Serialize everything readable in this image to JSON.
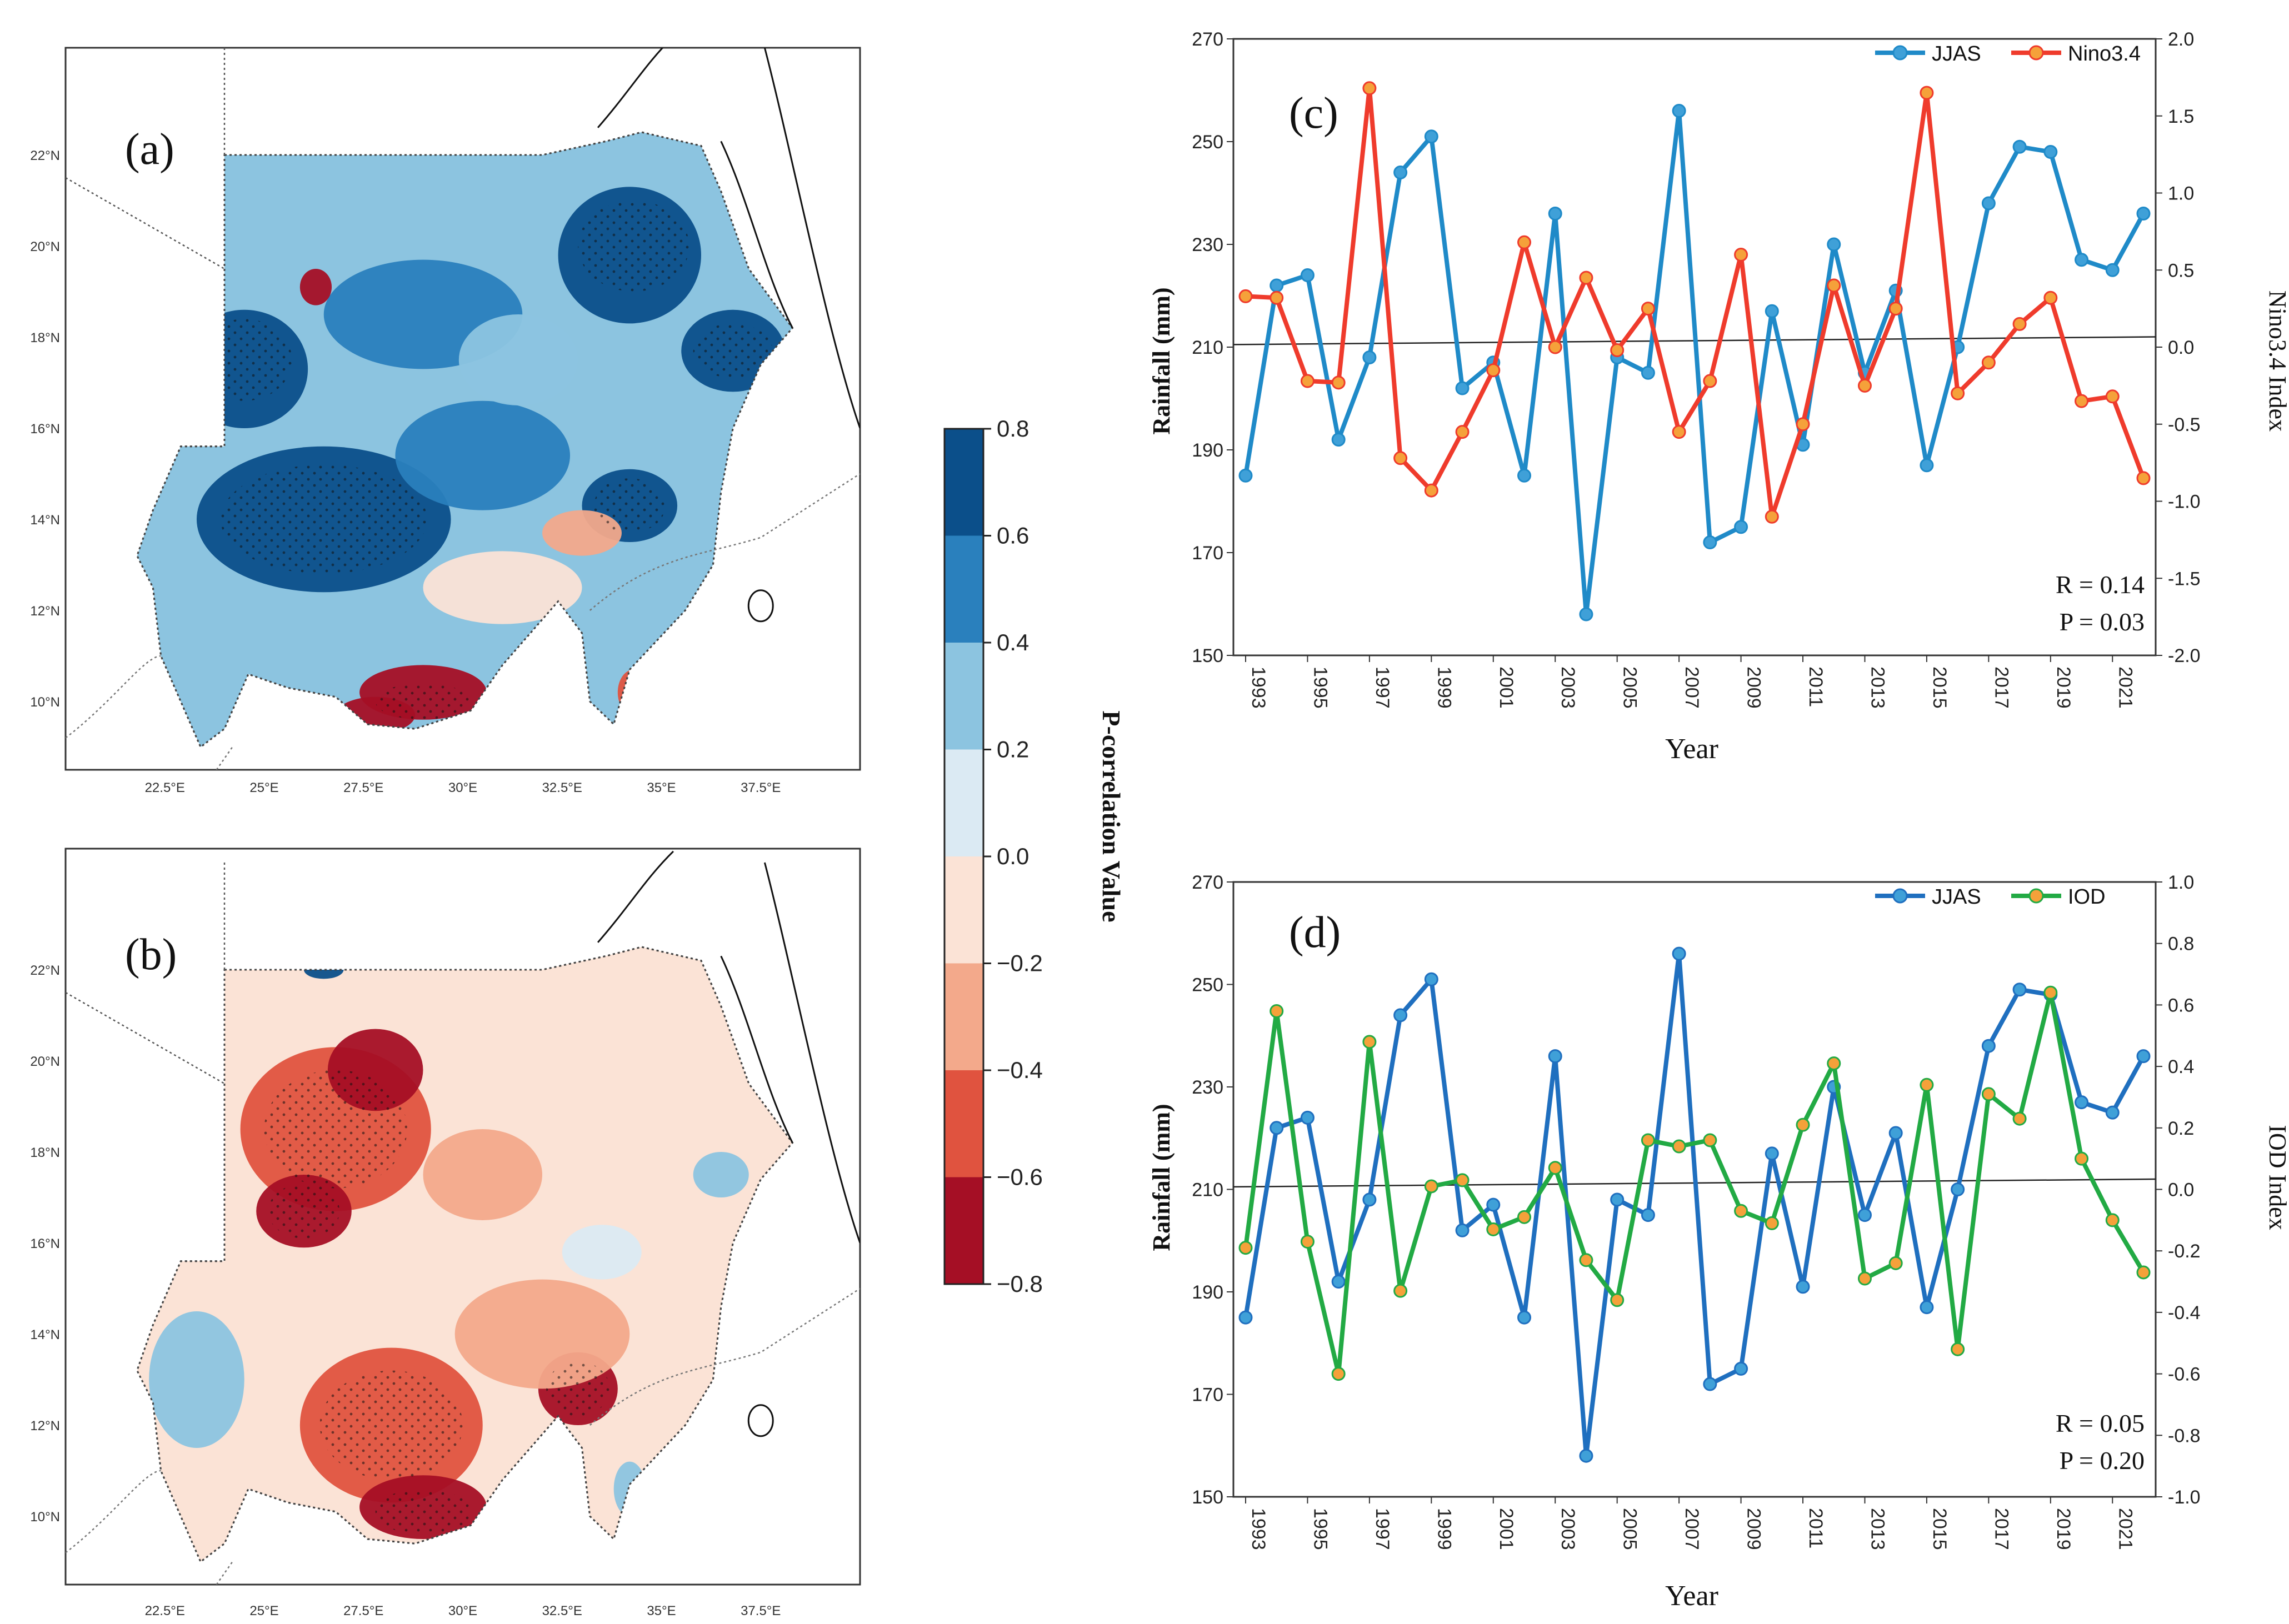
{
  "maps": [
    {
      "panel_label": "(a)",
      "lat_ticks": [
        "10°N",
        "12°N",
        "14°N",
        "16°N",
        "18°N",
        "20°N",
        "22°N"
      ],
      "lon_ticks": [
        "22.5°E",
        "25°E",
        "27.5°E",
        "30°E",
        "32.5°E",
        "35°E",
        "37.5°E"
      ],
      "palette": {
        "strong_pos": "#0b4f8a",
        "pos": "#2a80bd",
        "weak_pos": "#8cc4e0",
        "neutral_pos": "#dbeaf3",
        "neutral_neg": "#fbe3d6",
        "weak_neg": "#f3a98b",
        "neg": "#e0533f",
        "strong_neg": "#a50f25"
      }
    },
    {
      "panel_label": "(b)",
      "lat_ticks": [
        "10°N",
        "12°N",
        "14°N",
        "16°N",
        "18°N",
        "20°N",
        "22°N"
      ],
      "lon_ticks": [
        "22.5°E",
        "25°E",
        "27.5°E",
        "30°E",
        "32.5°E",
        "35°E",
        "37.5°E"
      ]
    }
  ],
  "colorbar": {
    "label": "P-correlation Value",
    "ticks": [
      "0.8",
      "0.6",
      "0.4",
      "0.2",
      "0.0",
      "−0.2",
      "−0.4",
      "−0.6",
      "−0.8"
    ],
    "colors": [
      "#0b4f8a",
      "#2a80bd",
      "#8cc4e0",
      "#dbeaf3",
      "#fbe3d6",
      "#f3a98b",
      "#e0533f",
      "#a50f25"
    ]
  },
  "chart_data": [
    {
      "type": "line",
      "panel_label": "(c)",
      "x": [
        1993,
        1994,
        1995,
        1996,
        1997,
        1998,
        1999,
        2000,
        2001,
        2002,
        2003,
        2004,
        2005,
        2006,
        2007,
        2008,
        2009,
        2010,
        2011,
        2012,
        2013,
        2014,
        2015,
        2016,
        2017,
        2018,
        2019,
        2020,
        2021,
        2022
      ],
      "x_tick_labels": [
        "1993",
        "1995",
        "1997",
        "1999",
        "2001",
        "2003",
        "2005",
        "2007",
        "2009",
        "2011",
        "2013",
        "2015",
        "2017",
        "2019",
        "2021"
      ],
      "xlabel": "Year",
      "ylabel": "Rainfall (mm)",
      "ylim": [
        150,
        270
      ],
      "y_ticks": [
        "150",
        "170",
        "190",
        "210",
        "230",
        "250",
        "270"
      ],
      "y2label": "Nino3.4 Index",
      "y2lim": [
        -2.0,
        2.0
      ],
      "y2_ticks": [
        "-2.0",
        "-1.5",
        "-1.0",
        "-0.5",
        "0.0",
        "0.5",
        "1.0",
        "1.5",
        "2.0"
      ],
      "reference_line": {
        "from": 210.5,
        "to": 212
      },
      "series": [
        {
          "name": "JJAS",
          "axis": "left",
          "color": "#1f8ac8",
          "marker": "#3fa0d8",
          "values": [
            185,
            222,
            224,
            192,
            208,
            244,
            251,
            202,
            207,
            185,
            236,
            158,
            208,
            205,
            256,
            172,
            175,
            217,
            191,
            230,
            205,
            221,
            187,
            210,
            238,
            249,
            248,
            227,
            225,
            236
          ]
        },
        {
          "name": "Nino3.4",
          "axis": "right",
          "color": "#ef3b2c",
          "marker": "#f5a13a",
          "values": [
            0.33,
            0.32,
            -0.22,
            -0.23,
            1.68,
            -0.72,
            -0.93,
            -0.55,
            -0.15,
            0.68,
            0.0,
            0.45,
            -0.02,
            0.25,
            -0.55,
            -0.22,
            0.6,
            -1.1,
            -0.5,
            0.4,
            -0.25,
            0.25,
            1.65,
            -0.3,
            -0.1,
            0.15,
            0.32,
            -0.35,
            -0.32,
            -0.85
          ]
        }
      ],
      "stats": {
        "r": "R = 0.14",
        "p": "P = 0.03"
      },
      "legend_position": "top-right"
    },
    {
      "type": "line",
      "panel_label": "(d)",
      "x": [
        1993,
        1994,
        1995,
        1996,
        1997,
        1998,
        1999,
        2000,
        2001,
        2002,
        2003,
        2004,
        2005,
        2006,
        2007,
        2008,
        2009,
        2010,
        2011,
        2012,
        2013,
        2014,
        2015,
        2016,
        2017,
        2018,
        2019,
        2020,
        2021,
        2022
      ],
      "x_tick_labels": [
        "1993",
        "1995",
        "1997",
        "1999",
        "2001",
        "2003",
        "2005",
        "2007",
        "2009",
        "2011",
        "2013",
        "2015",
        "2017",
        "2019",
        "2021"
      ],
      "xlabel": "Year",
      "ylabel": "Rainfall (mm)",
      "ylim": [
        150,
        270
      ],
      "y_ticks": [
        "150",
        "170",
        "190",
        "210",
        "230",
        "250",
        "270"
      ],
      "y2label": "IOD Index",
      "y2lim": [
        -1.0,
        1.0
      ],
      "y2_ticks": [
        "-1.0",
        "-0.8",
        "-0.6",
        "-0.4",
        "-0.2",
        "0.0",
        "0.2",
        "0.4",
        "0.6",
        "0.8",
        "1.0"
      ],
      "reference_line": {
        "from": 210.5,
        "to": 212
      },
      "series": [
        {
          "name": "JJAS",
          "axis": "left",
          "color": "#1f6fbf",
          "marker": "#3fa0d8",
          "values": [
            185,
            222,
            224,
            192,
            208,
            244,
            251,
            202,
            207,
            185,
            236,
            158,
            208,
            205,
            256,
            172,
            175,
            217,
            191,
            230,
            205,
            221,
            187,
            210,
            238,
            249,
            248,
            227,
            225,
            236
          ]
        },
        {
          "name": "IOD",
          "axis": "right",
          "color": "#22aa44",
          "marker": "#f5a13a",
          "values": [
            -0.19,
            0.58,
            -0.17,
            -0.6,
            0.48,
            -0.33,
            0.01,
            0.03,
            -0.13,
            -0.09,
            0.07,
            -0.23,
            -0.36,
            0.16,
            0.14,
            0.16,
            -0.07,
            -0.11,
            0.21,
            0.41,
            -0.29,
            -0.24,
            0.34,
            -0.52,
            0.31,
            0.23,
            0.64,
            0.1,
            -0.1,
            -0.27
          ]
        }
      ],
      "stats": {
        "r": "R = 0.05",
        "p": "P = 0.20"
      },
      "legend_position": "top-right"
    }
  ]
}
